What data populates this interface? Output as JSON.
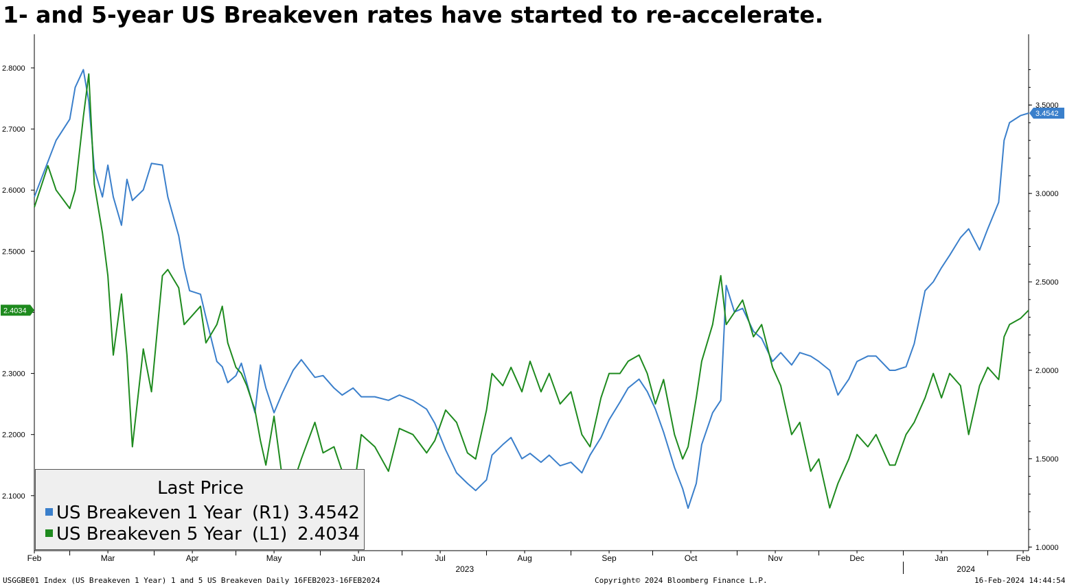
{
  "title": "1- and 5-year US Breakeven rates have started to re-accelerate.",
  "footer": {
    "left": "USGGBE01 Index (US Breakeven 1 Year) 1 and 5 US Breakeven  Daily 16FEB2023-16FEB2024",
    "center": "Copyright© 2024 Bloomberg Finance L.P.",
    "right": "16-Feb-2024 14:44:54"
  },
  "legend": {
    "title": "Last Price",
    "items": [
      {
        "name": "US Breakeven 1 Year",
        "axis": "(R1)",
        "value": "3.4542",
        "color": "#3a7fcb"
      },
      {
        "name": "US Breakeven 5 Year",
        "axis": "(L1)",
        "value": "2.4034",
        "color": "#1e8a1e"
      }
    ]
  },
  "colors": {
    "blue": "#3a7fcb",
    "green": "#1e8a1e"
  },
  "chart_data": {
    "type": "line",
    "x_range": [
      "2023-02-16",
      "2024-02-16"
    ],
    "x_months": [
      {
        "label": "Feb",
        "date": "2023-02-16"
      },
      {
        "label": "Mar",
        "date": "2023-03-15"
      },
      {
        "label": "Apr",
        "date": "2023-04-15"
      },
      {
        "label": "May",
        "date": "2023-05-15"
      },
      {
        "label": "Jun",
        "date": "2023-06-15"
      },
      {
        "label": "Jul",
        "date": "2023-07-15"
      },
      {
        "label": "Aug",
        "date": "2023-08-15"
      },
      {
        "label": "Sep",
        "date": "2023-09-15"
      },
      {
        "label": "Oct",
        "date": "2023-10-15"
      },
      {
        "label": "Nov",
        "date": "2023-11-15"
      },
      {
        "label": "Dec",
        "date": "2023-12-15"
      },
      {
        "label": "Jan",
        "date": "2024-01-15"
      },
      {
        "label": "Feb",
        "date": "2024-02-14"
      }
    ],
    "year_labels": [
      {
        "label": "2023",
        "date": "2023-07-24"
      },
      {
        "label": "2024",
        "date": "2024-01-24"
      }
    ],
    "year_divider": "2024-01-01",
    "left_axis": {
      "ylim": [
        2.01,
        2.855
      ],
      "ticks": [
        "2.1000",
        "2.2000",
        "2.3000",
        "2.4000",
        "2.5000",
        "2.6000",
        "2.7000",
        "2.8000"
      ],
      "last": "2.4034"
    },
    "right_axis": {
      "ylim": [
        0.98,
        3.9
      ],
      "ticks": [
        "1.0000",
        "1.5000",
        "2.0000",
        "2.5000",
        "3.0000",
        "3.5000"
      ],
      "last": "3.4542"
    },
    "series": [
      {
        "name": "US Breakeven 1 Year",
        "axis": "right",
        "color": "#3a7fcb",
        "points": [
          [
            "2023-02-16",
            2.98
          ],
          [
            "2023-02-21",
            3.18
          ],
          [
            "2023-02-24",
            3.3
          ],
          [
            "2023-03-01",
            3.42
          ],
          [
            "2023-03-03",
            3.6
          ],
          [
            "2023-03-06",
            3.7
          ],
          [
            "2023-03-08",
            3.52
          ],
          [
            "2023-03-10",
            3.14
          ],
          [
            "2023-03-13",
            2.98
          ],
          [
            "2023-03-15",
            3.16
          ],
          [
            "2023-03-17",
            2.98
          ],
          [
            "2023-03-20",
            2.82
          ],
          [
            "2023-03-22",
            3.08
          ],
          [
            "2023-03-24",
            2.96
          ],
          [
            "2023-03-28",
            3.02
          ],
          [
            "2023-03-31",
            3.17
          ],
          [
            "2023-04-04",
            3.16
          ],
          [
            "2023-04-06",
            2.98
          ],
          [
            "2023-04-10",
            2.76
          ],
          [
            "2023-04-12",
            2.58
          ],
          [
            "2023-04-14",
            2.45
          ],
          [
            "2023-04-18",
            2.43
          ],
          [
            "2023-04-20",
            2.3
          ],
          [
            "2023-04-24",
            2.05
          ],
          [
            "2023-04-26",
            2.02
          ],
          [
            "2023-04-28",
            1.93
          ],
          [
            "2023-05-01",
            1.97
          ],
          [
            "2023-05-03",
            2.04
          ],
          [
            "2023-05-05",
            1.93
          ],
          [
            "2023-05-08",
            1.76
          ],
          [
            "2023-05-10",
            2.03
          ],
          [
            "2023-05-12",
            1.9
          ],
          [
            "2023-05-15",
            1.76
          ],
          [
            "2023-05-18",
            1.87
          ],
          [
            "2023-05-22",
            2.0
          ],
          [
            "2023-05-25",
            2.06
          ],
          [
            "2023-05-30",
            1.96
          ],
          [
            "2023-06-02",
            1.97
          ],
          [
            "2023-06-06",
            1.9
          ],
          [
            "2023-06-09",
            1.86
          ],
          [
            "2023-06-13",
            1.9
          ],
          [
            "2023-06-16",
            1.85
          ],
          [
            "2023-06-21",
            1.85
          ],
          [
            "2023-06-26",
            1.83
          ],
          [
            "2023-06-30",
            1.86
          ],
          [
            "2023-07-05",
            1.83
          ],
          [
            "2023-07-10",
            1.78
          ],
          [
            "2023-07-13",
            1.7
          ],
          [
            "2023-07-17",
            1.55
          ],
          [
            "2023-07-21",
            1.42
          ],
          [
            "2023-07-25",
            1.36
          ],
          [
            "2023-07-28",
            1.32
          ],
          [
            "2023-08-01",
            1.38
          ],
          [
            "2023-08-03",
            1.52
          ],
          [
            "2023-08-07",
            1.58
          ],
          [
            "2023-08-10",
            1.62
          ],
          [
            "2023-08-14",
            1.5
          ],
          [
            "2023-08-17",
            1.53
          ],
          [
            "2023-08-21",
            1.48
          ],
          [
            "2023-08-24",
            1.52
          ],
          [
            "2023-08-28",
            1.46
          ],
          [
            "2023-09-01",
            1.48
          ],
          [
            "2023-09-05",
            1.42
          ],
          [
            "2023-09-08",
            1.52
          ],
          [
            "2023-09-12",
            1.62
          ],
          [
            "2023-09-15",
            1.72
          ],
          [
            "2023-09-19",
            1.82
          ],
          [
            "2023-09-22",
            1.9
          ],
          [
            "2023-09-26",
            1.95
          ],
          [
            "2023-09-29",
            1.88
          ],
          [
            "2023-10-02",
            1.78
          ],
          [
            "2023-10-05",
            1.65
          ],
          [
            "2023-10-09",
            1.45
          ],
          [
            "2023-10-12",
            1.33
          ],
          [
            "2023-10-14",
            1.22
          ],
          [
            "2023-10-17",
            1.36
          ],
          [
            "2023-10-19",
            1.58
          ],
          [
            "2023-10-23",
            1.76
          ],
          [
            "2023-10-26",
            1.83
          ],
          [
            "2023-10-28",
            2.48
          ],
          [
            "2023-10-31",
            2.33
          ],
          [
            "2023-11-03",
            2.35
          ],
          [
            "2023-11-07",
            2.22
          ],
          [
            "2023-11-10",
            2.18
          ],
          [
            "2023-11-14",
            2.05
          ],
          [
            "2023-11-17",
            2.1
          ],
          [
            "2023-11-21",
            2.03
          ],
          [
            "2023-11-24",
            2.1
          ],
          [
            "2023-11-28",
            2.08
          ],
          [
            "2023-12-01",
            2.05
          ],
          [
            "2023-12-05",
            2.0
          ],
          [
            "2023-12-08",
            1.86
          ],
          [
            "2023-12-12",
            1.95
          ],
          [
            "2023-12-15",
            2.05
          ],
          [
            "2023-12-19",
            2.08
          ],
          [
            "2023-12-22",
            2.08
          ],
          [
            "2023-12-27",
            2.0
          ],
          [
            "2023-12-29",
            2.0
          ],
          [
            "2024-01-02",
            2.02
          ],
          [
            "2024-01-05",
            2.15
          ],
          [
            "2024-01-09",
            2.45
          ],
          [
            "2024-01-12",
            2.5
          ],
          [
            "2024-01-15",
            2.58
          ],
          [
            "2024-01-18",
            2.65
          ],
          [
            "2024-01-22",
            2.75
          ],
          [
            "2024-01-25",
            2.8
          ],
          [
            "2024-01-29",
            2.68
          ],
          [
            "2024-02-01",
            2.8
          ],
          [
            "2024-02-05",
            2.95
          ],
          [
            "2024-02-07",
            3.3
          ],
          [
            "2024-02-09",
            3.4
          ],
          [
            "2024-02-13",
            3.44
          ],
          [
            "2024-02-16",
            3.4542
          ]
        ]
      },
      {
        "name": "US Breakeven 5 Year",
        "axis": "left",
        "color": "#1e8a1e",
        "points": [
          [
            "2023-02-16",
            2.572
          ],
          [
            "2023-02-21",
            2.64
          ],
          [
            "2023-02-24",
            2.6
          ],
          [
            "2023-03-01",
            2.57
          ],
          [
            "2023-03-03",
            2.6
          ],
          [
            "2023-03-06",
            2.72
          ],
          [
            "2023-03-08",
            2.79
          ],
          [
            "2023-03-10",
            2.61
          ],
          [
            "2023-03-13",
            2.53
          ],
          [
            "2023-03-15",
            2.46
          ],
          [
            "2023-03-17",
            2.33
          ],
          [
            "2023-03-20",
            2.43
          ],
          [
            "2023-03-22",
            2.33
          ],
          [
            "2023-03-24",
            2.18
          ],
          [
            "2023-03-28",
            2.34
          ],
          [
            "2023-03-31",
            2.27
          ],
          [
            "2023-04-04",
            2.46
          ],
          [
            "2023-04-06",
            2.47
          ],
          [
            "2023-04-10",
            2.44
          ],
          [
            "2023-04-12",
            2.38
          ],
          [
            "2023-04-14",
            2.39
          ],
          [
            "2023-04-18",
            2.41
          ],
          [
            "2023-04-20",
            2.35
          ],
          [
            "2023-04-24",
            2.38
          ],
          [
            "2023-04-26",
            2.41
          ],
          [
            "2023-04-28",
            2.35
          ],
          [
            "2023-05-01",
            2.31
          ],
          [
            "2023-05-03",
            2.3
          ],
          [
            "2023-05-05",
            2.28
          ],
          [
            "2023-05-08",
            2.24
          ],
          [
            "2023-05-10",
            2.19
          ],
          [
            "2023-05-12",
            2.15
          ],
          [
            "2023-05-15",
            2.23
          ],
          [
            "2023-05-18",
            2.13
          ],
          [
            "2023-05-22",
            2.12
          ],
          [
            "2023-05-25",
            2.16
          ],
          [
            "2023-05-30",
            2.22
          ],
          [
            "2023-06-02",
            2.17
          ],
          [
            "2023-06-06",
            2.18
          ],
          [
            "2023-06-09",
            2.14
          ],
          [
            "2023-06-13",
            2.1
          ],
          [
            "2023-06-16",
            2.2
          ],
          [
            "2023-06-21",
            2.18
          ],
          [
            "2023-06-26",
            2.14
          ],
          [
            "2023-06-30",
            2.21
          ],
          [
            "2023-07-05",
            2.2
          ],
          [
            "2023-07-10",
            2.17
          ],
          [
            "2023-07-13",
            2.19
          ],
          [
            "2023-07-17",
            2.24
          ],
          [
            "2023-07-21",
            2.22
          ],
          [
            "2023-07-25",
            2.17
          ],
          [
            "2023-07-28",
            2.16
          ],
          [
            "2023-08-01",
            2.24
          ],
          [
            "2023-08-03",
            2.3
          ],
          [
            "2023-08-07",
            2.28
          ],
          [
            "2023-08-10",
            2.31
          ],
          [
            "2023-08-14",
            2.27
          ],
          [
            "2023-08-17",
            2.32
          ],
          [
            "2023-08-21",
            2.27
          ],
          [
            "2023-08-24",
            2.3
          ],
          [
            "2023-08-28",
            2.25
          ],
          [
            "2023-09-01",
            2.27
          ],
          [
            "2023-09-05",
            2.2
          ],
          [
            "2023-09-08",
            2.18
          ],
          [
            "2023-09-12",
            2.26
          ],
          [
            "2023-09-15",
            2.3
          ],
          [
            "2023-09-19",
            2.3
          ],
          [
            "2023-09-22",
            2.32
          ],
          [
            "2023-09-26",
            2.33
          ],
          [
            "2023-09-29",
            2.3
          ],
          [
            "2023-10-02",
            2.25
          ],
          [
            "2023-10-05",
            2.29
          ],
          [
            "2023-10-09",
            2.2
          ],
          [
            "2023-10-12",
            2.16
          ],
          [
            "2023-10-14",
            2.18
          ],
          [
            "2023-10-17",
            2.26
          ],
          [
            "2023-10-19",
            2.32
          ],
          [
            "2023-10-23",
            2.38
          ],
          [
            "2023-10-26",
            2.46
          ],
          [
            "2023-10-28",
            2.38
          ],
          [
            "2023-10-31",
            2.4
          ],
          [
            "2023-11-03",
            2.42
          ],
          [
            "2023-11-07",
            2.36
          ],
          [
            "2023-11-10",
            2.38
          ],
          [
            "2023-11-14",
            2.31
          ],
          [
            "2023-11-17",
            2.28
          ],
          [
            "2023-11-21",
            2.2
          ],
          [
            "2023-11-24",
            2.22
          ],
          [
            "2023-11-28",
            2.14
          ],
          [
            "2023-12-01",
            2.16
          ],
          [
            "2023-12-05",
            2.08
          ],
          [
            "2023-12-08",
            2.12
          ],
          [
            "2023-12-12",
            2.16
          ],
          [
            "2023-12-15",
            2.2
          ],
          [
            "2023-12-19",
            2.18
          ],
          [
            "2023-12-22",
            2.2
          ],
          [
            "2023-12-27",
            2.15
          ],
          [
            "2023-12-29",
            2.15
          ],
          [
            "2024-01-02",
            2.2
          ],
          [
            "2024-01-05",
            2.22
          ],
          [
            "2024-01-09",
            2.26
          ],
          [
            "2024-01-12",
            2.3
          ],
          [
            "2024-01-15",
            2.26
          ],
          [
            "2024-01-18",
            2.3
          ],
          [
            "2024-01-22",
            2.28
          ],
          [
            "2024-01-25",
            2.2
          ],
          [
            "2024-01-29",
            2.28
          ],
          [
            "2024-02-01",
            2.31
          ],
          [
            "2024-02-05",
            2.29
          ],
          [
            "2024-02-07",
            2.36
          ],
          [
            "2024-02-09",
            2.38
          ],
          [
            "2024-02-13",
            2.39
          ],
          [
            "2024-02-16",
            2.4034
          ]
        ]
      }
    ]
  }
}
